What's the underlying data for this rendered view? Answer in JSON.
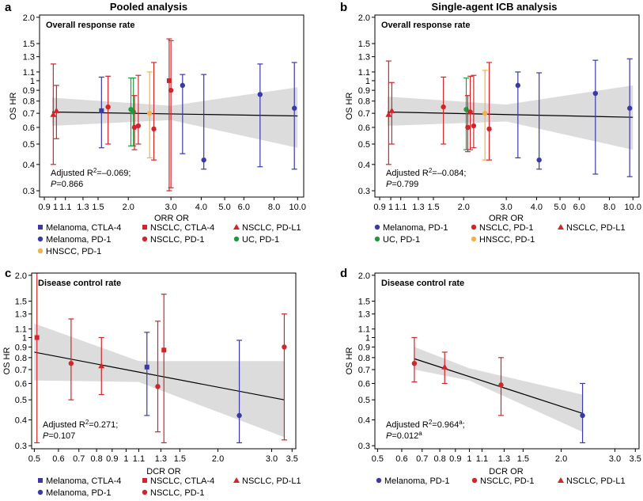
{
  "colors": {
    "melanoma_ctla4": "#3a3aa6",
    "nsclc_ctla4": "#d0262a",
    "nsclc_pdl1": "#d0262a",
    "melanoma_pd1": "#3a3aa6",
    "nsclc_pd1": "#d0262a",
    "uc_pd1": "#1e9a3c",
    "hnscc_pd1": "#f4b14a",
    "band": "#dcdcdc",
    "line": "#000000"
  },
  "chart_data": [
    {
      "id": "a",
      "type": "scatter",
      "letter": "a",
      "title": "Pooled analysis",
      "box_title": "Overall response rate",
      "xlabel": "ORR OR",
      "ylabel": "OS HR",
      "x_scale": "log",
      "y_scale": "log",
      "xlim": [
        0.86,
        10.6
      ],
      "ylim": [
        0.28,
        2.05
      ],
      "xticks": [
        0.9,
        1,
        1.1,
        1.3,
        1.5,
        2.0,
        3.0,
        4.0,
        5.0,
        6.0,
        8.0,
        10.0
      ],
      "xtick_labels": [
        "0.9",
        "1",
        "1.1",
        "1.3",
        "1.5",
        "2.0",
        "3.0",
        "4.0",
        "5.0",
        "6.0",
        "8.0",
        "10.0"
      ],
      "yticks": [
        0.3,
        0.4,
        0.5,
        0.6,
        0.7,
        0.8,
        0.9,
        1,
        1.1,
        1.3,
        1.5,
        2.0
      ],
      "ytick_labels": [
        "0.3",
        "0.4",
        "0.5",
        "0.6",
        "0.7",
        "0.8",
        "0.9",
        "1",
        "1.1",
        "1.3",
        "1.5",
        "2.0"
      ],
      "stat_prefix": "Adjusted R",
      "stat_exp": "2",
      "stat_value": "=–0.069;",
      "p_label": "P",
      "p_value": "=0.866",
      "p_sup": "",
      "regression": {
        "x": [
          0.97,
          10.0
        ],
        "y": [
          0.71,
          0.68
        ]
      },
      "band": {
        "x": [
          0.97,
          3.0,
          10.0
        ],
        "lower": [
          0.61,
          0.65,
          0.48
        ],
        "upper": [
          0.83,
          0.76,
          0.93
        ]
      },
      "points": [
        {
          "group": "nsclc_pdl1",
          "shape": "triangle",
          "x": 0.98,
          "y": 0.69,
          "lo": 0.4,
          "hi": 1.2
        },
        {
          "group": "nsclc_pdl1",
          "shape": "triangle",
          "x": 1.01,
          "y": 0.72,
          "lo": 0.53,
          "hi": 0.95
        },
        {
          "group": "melanoma_ctla4",
          "shape": "square",
          "x": 1.55,
          "y": 0.72,
          "lo": 0.48,
          "hi": 1.04
        },
        {
          "group": "nsclc_pd1",
          "shape": "circle",
          "x": 1.65,
          "y": 0.75,
          "lo": 0.5,
          "hi": 1.05
        },
        {
          "group": "uc_pd1",
          "shape": "circle",
          "x": 2.05,
          "y": 0.73,
          "lo": 0.49,
          "hi": 1.03
        },
        {
          "group": "uc_pd1",
          "shape": "circle",
          "x": 2.1,
          "y": 0.71,
          "lo": 0.49,
          "hi": 1.03
        },
        {
          "group": "nsclc_pd1",
          "shape": "circle",
          "x": 2.12,
          "y": 0.6,
          "lo": 0.47,
          "hi": 0.85
        },
        {
          "group": "nsclc_pd1",
          "shape": "circle",
          "x": 2.2,
          "y": 0.61,
          "lo": 0.5,
          "hi": 1.06
        },
        {
          "group": "hnscc_pd1",
          "shape": "circle",
          "x": 2.45,
          "y": 0.7,
          "lo": 0.43,
          "hi": 1.1
        },
        {
          "group": "nsclc_pd1",
          "shape": "circle",
          "x": 2.55,
          "y": 0.59,
          "lo": 0.42,
          "hi": 1.22
        },
        {
          "group": "nsclc_ctla4",
          "shape": "square",
          "x": 2.95,
          "y": 1.0,
          "lo": 0.3,
          "hi": 1.58
        },
        {
          "group": "nsclc_pd1",
          "shape": "circle",
          "x": 3.0,
          "y": 0.9,
          "lo": 0.31,
          "hi": 1.55
        },
        {
          "group": "melanoma_pd1",
          "shape": "circle",
          "x": 3.35,
          "y": 0.95,
          "lo": 0.45,
          "hi": 1.07
        },
        {
          "group": "melanoma_pd1",
          "shape": "circle",
          "x": 4.1,
          "y": 0.42,
          "lo": 0.38,
          "hi": 1.07
        },
        {
          "group": "melanoma_pd1",
          "shape": "circle",
          "x": 7.0,
          "y": 0.86,
          "lo": 0.39,
          "hi": 1.2
        },
        {
          "group": "melanoma_pd1",
          "shape": "circle",
          "x": 9.7,
          "y": 0.74,
          "lo": 0.38,
          "hi": 1.22
        }
      ],
      "legend": [
        {
          "group": "melanoma_ctla4",
          "shape": "square",
          "label": "Melanoma, CTLA-4"
        },
        {
          "group": "nsclc_ctla4",
          "shape": "square",
          "label": "NSCLC, CTLA-4"
        },
        {
          "group": "nsclc_pdl1",
          "shape": "triangle",
          "label": "NSCLC, PD-L1"
        },
        {
          "group": "melanoma_pd1",
          "shape": "circle",
          "label": "Melanoma, PD-1"
        },
        {
          "group": "nsclc_pd1",
          "shape": "circle",
          "label": "NSCLC, PD-1"
        },
        {
          "group": "uc_pd1",
          "shape": "circle",
          "label": "UC, PD-1"
        },
        {
          "group": "hnscc_pd1",
          "shape": "circle",
          "label": "HNSCC, PD-1"
        }
      ]
    },
    {
      "id": "b",
      "type": "scatter",
      "letter": "b",
      "title": "Single-agent ICB analysis",
      "box_title": "Overall response rate",
      "xlabel": "ORR OR",
      "ylabel": "OS HR",
      "x_scale": "log",
      "y_scale": "log",
      "xlim": [
        0.86,
        10.6
      ],
      "ylim": [
        0.28,
        2.05
      ],
      "xticks": [
        0.9,
        1,
        1.1,
        1.3,
        1.5,
        2.0,
        3.0,
        4.0,
        5.0,
        6.0,
        8.0,
        10.0
      ],
      "xtick_labels": [
        "0.9",
        "1",
        "1.1",
        "1.3",
        "1.5",
        "2.0",
        "3.0",
        "4.0",
        "5.0",
        "6.0",
        "8.0",
        "10.0"
      ],
      "yticks": [
        0.3,
        0.4,
        0.5,
        0.6,
        0.7,
        0.8,
        0.9,
        1,
        1.1,
        1.3,
        1.5,
        2.0
      ],
      "ytick_labels": [
        "0.3",
        "0.4",
        "0.5",
        "0.6",
        "0.7",
        "0.8",
        "0.9",
        "1",
        "1.1",
        "1.3",
        "1.5",
        "2.0"
      ],
      "stat_prefix": "Adjusted R",
      "stat_exp": "2",
      "stat_value": "=–0.084;",
      "p_label": "P",
      "p_value": "=0.799",
      "p_sup": "",
      "regression": {
        "x": [
          0.97,
          10.0
        ],
        "y": [
          0.71,
          0.67
        ]
      },
      "band": {
        "x": [
          0.97,
          3.0,
          10.0
        ],
        "lower": [
          0.61,
          0.64,
          0.47
        ],
        "upper": [
          0.84,
          0.77,
          0.95
        ]
      },
      "points": [
        {
          "group": "nsclc_pdl1",
          "shape": "triangle",
          "x": 0.98,
          "y": 0.69,
          "lo": 0.4,
          "hi": 1.24
        },
        {
          "group": "nsclc_pdl1",
          "shape": "triangle",
          "x": 1.01,
          "y": 0.72,
          "lo": 0.5,
          "hi": 0.98
        },
        {
          "group": "nsclc_pd1",
          "shape": "circle",
          "x": 1.65,
          "y": 0.75,
          "lo": 0.5,
          "hi": 1.04
        },
        {
          "group": "uc_pd1",
          "shape": "circle",
          "x": 2.05,
          "y": 0.73,
          "lo": 0.47,
          "hi": 1.03
        },
        {
          "group": "nsclc_pd1",
          "shape": "circle",
          "x": 2.08,
          "y": 0.6,
          "lo": 0.46,
          "hi": 0.85
        },
        {
          "group": "nsclc_pd1",
          "shape": "circle",
          "x": 2.13,
          "y": 0.71,
          "lo": 0.47,
          "hi": 1.05
        },
        {
          "group": "nsclc_pd1",
          "shape": "circle",
          "x": 2.2,
          "y": 0.61,
          "lo": 0.48,
          "hi": 1.06
        },
        {
          "group": "hnscc_pd1",
          "shape": "circle",
          "x": 2.45,
          "y": 0.7,
          "lo": 0.42,
          "hi": 1.12
        },
        {
          "group": "nsclc_pd1",
          "shape": "circle",
          "x": 2.55,
          "y": 0.59,
          "lo": 0.42,
          "hi": 1.22
        },
        {
          "group": "melanoma_pd1",
          "shape": "circle",
          "x": 3.35,
          "y": 0.95,
          "lo": 0.43,
          "hi": 1.1
        },
        {
          "group": "melanoma_pd1",
          "shape": "circle",
          "x": 4.1,
          "y": 0.42,
          "lo": 0.38,
          "hi": 1.09
        },
        {
          "group": "melanoma_pd1",
          "shape": "circle",
          "x": 7.0,
          "y": 0.87,
          "lo": 0.36,
          "hi": 1.25
        },
        {
          "group": "melanoma_pd1",
          "shape": "circle",
          "x": 9.7,
          "y": 0.74,
          "lo": 0.35,
          "hi": 1.27
        }
      ],
      "legend": [
        {
          "group": "melanoma_pd1",
          "shape": "circle",
          "label": "Melanoma, PD-1"
        },
        {
          "group": "nsclc_pd1",
          "shape": "circle",
          "label": "NSCLC, PD-1"
        },
        {
          "group": "nsclc_pdl1",
          "shape": "triangle",
          "label": "NSCLC, PD-L1"
        },
        {
          "group": "uc_pd1",
          "shape": "circle",
          "label": "UC, PD-1"
        },
        {
          "group": "hnscc_pd1",
          "shape": "circle",
          "label": "HNSCC, PD-1"
        }
      ]
    },
    {
      "id": "c",
      "type": "scatter",
      "letter": "c",
      "title": "",
      "box_title": "Disease control rate",
      "xlabel": "DCR OR",
      "ylabel": "OS HR",
      "x_scale": "log",
      "y_scale": "log",
      "xlim": [
        0.49,
        3.6
      ],
      "ylim": [
        0.29,
        2.05
      ],
      "xticks": [
        0.5,
        0.6,
        0.7,
        0.8,
        0.9,
        1,
        1.1,
        1.3,
        1.5,
        2.0,
        3.0,
        3.5
      ],
      "xtick_labels": [
        "0.5",
        "0.6",
        "0.7",
        "0.8",
        "0.9",
        "1",
        "1.1",
        "1.3",
        "1.5",
        "2.0",
        "3.0",
        "3.5"
      ],
      "yticks": [
        0.3,
        0.4,
        0.5,
        0.6,
        0.7,
        0.8,
        0.9,
        1,
        1.1,
        1.3,
        1.5,
        2.0
      ],
      "ytick_labels": [
        "0.3",
        "0.4",
        "0.5",
        "0.6",
        "0.7",
        "0.8",
        "0.9",
        "1",
        "1.1",
        "1.3",
        "1.5",
        "2.0"
      ],
      "stat_prefix": "Adjusted R",
      "stat_exp": "2",
      "stat_value": "=0.271;",
      "p_label": "P",
      "p_value": "=0.107",
      "p_sup": "",
      "regression": {
        "x": [
          0.5,
          3.3
        ],
        "y": [
          0.85,
          0.5
        ]
      },
      "band": {
        "x": [
          0.5,
          1.1,
          3.3
        ],
        "lower": [
          0.62,
          0.61,
          0.33
        ],
        "upper": [
          1.17,
          0.77,
          0.77
        ]
      },
      "points": [
        {
          "group": "nsclc_ctla4",
          "shape": "square",
          "x": 0.51,
          "y": 1.0,
          "lo": 0.31,
          "hi": 2.05
        },
        {
          "group": "nsclc_pd1",
          "shape": "circle",
          "x": 0.66,
          "y": 0.75,
          "lo": 0.5,
          "hi": 1.23
        },
        {
          "group": "nsclc_pdl1",
          "shape": "triangle",
          "x": 0.83,
          "y": 0.73,
          "lo": 0.53,
          "hi": 1.0
        },
        {
          "group": "melanoma_ctla4",
          "shape": "square",
          "x": 1.17,
          "y": 0.72,
          "lo": 0.42,
          "hi": 1.06
        },
        {
          "group": "nsclc_pd1",
          "shape": "circle",
          "x": 1.27,
          "y": 0.58,
          "lo": 0.35,
          "hi": 1.2
        },
        {
          "group": "nsclc_ctla4",
          "shape": "square",
          "x": 1.33,
          "y": 0.87,
          "lo": 0.31,
          "hi": 1.62
        },
        {
          "group": "melanoma_pd1",
          "shape": "circle",
          "x": 2.35,
          "y": 0.42,
          "lo": 0.31,
          "hi": 0.97
        },
        {
          "group": "nsclc_pd1",
          "shape": "circle",
          "x": 3.3,
          "y": 0.9,
          "lo": 0.32,
          "hi": 1.3
        }
      ],
      "legend": [
        {
          "group": "melanoma_ctla4",
          "shape": "square",
          "label": "Melanoma, CTLA-4"
        },
        {
          "group": "nsclc_ctla4",
          "shape": "square",
          "label": "NSCLC, CTLA-4"
        },
        {
          "group": "nsclc_pdl1",
          "shape": "triangle",
          "label": "NSCLC, PD-L1"
        },
        {
          "group": "melanoma_pd1",
          "shape": "circle",
          "label": "Melanoma, PD-1"
        },
        {
          "group": "nsclc_pd1",
          "shape": "circle",
          "label": "NSCLC, PD-1"
        }
      ]
    },
    {
      "id": "d",
      "type": "scatter",
      "letter": "d",
      "title": "",
      "box_title": "Disease control rate",
      "xlabel": "DCR OR",
      "ylabel": "OS HR",
      "x_scale": "log",
      "y_scale": "log",
      "xlim": [
        0.49,
        3.6
      ],
      "ylim": [
        0.29,
        2.05
      ],
      "xticks": [
        0.5,
        0.6,
        0.7,
        0.8,
        0.9,
        1,
        1.1,
        1.3,
        1.5,
        2.0,
        3.0,
        3.5
      ],
      "xtick_labels": [
        "0.5",
        "0.6",
        "0.7",
        "0.8",
        "0.9",
        "1",
        "1.1",
        "1.3",
        "1.5",
        "2.0",
        "3.0",
        "3.5"
      ],
      "yticks": [
        0.3,
        0.4,
        0.5,
        0.6,
        0.7,
        0.8,
        0.9,
        1,
        1.1,
        1.3,
        1.5,
        2.0
      ],
      "ytick_labels": [
        "0.3",
        "0.4",
        "0.5",
        "0.6",
        "0.7",
        "0.8",
        "0.9",
        "1",
        "1.1",
        "1.3",
        "1.5",
        "2.0"
      ],
      "stat_prefix": "Adjusted R",
      "stat_exp": "2",
      "stat_value": "=0.964",
      "stat_value_sup": "a",
      "stat_value_tail": ";",
      "p_label": "P",
      "p_value": "=0.012",
      "p_sup": "a",
      "regression": {
        "x": [
          0.66,
          2.35
        ],
        "y": [
          0.79,
          0.43
        ]
      },
      "band": {
        "x": [
          0.66,
          1.0,
          2.35
        ],
        "lower": [
          0.7,
          0.62,
          0.35
        ],
        "upper": [
          0.9,
          0.71,
          0.53
        ]
      },
      "points": [
        {
          "group": "nsclc_pd1",
          "shape": "circle",
          "x": 0.66,
          "y": 0.75,
          "lo": 0.61,
          "hi": 1.0
        },
        {
          "group": "nsclc_pdl1",
          "shape": "triangle",
          "x": 0.83,
          "y": 0.72,
          "lo": 0.6,
          "hi": 0.85
        },
        {
          "group": "nsclc_pd1",
          "shape": "circle",
          "x": 1.27,
          "y": 0.59,
          "lo": 0.42,
          "hi": 0.8
        },
        {
          "group": "melanoma_pd1",
          "shape": "circle",
          "x": 2.35,
          "y": 0.42,
          "lo": 0.31,
          "hi": 0.6
        }
      ],
      "legend": [
        {
          "group": "melanoma_pd1",
          "shape": "circle",
          "label": "Melanoma, PD-1"
        },
        {
          "group": "nsclc_pd1",
          "shape": "circle",
          "label": "NSCLC, PD-1"
        },
        {
          "group": "nsclc_pdl1",
          "shape": "triangle",
          "label": "NSCLC, PD-L1"
        }
      ]
    }
  ]
}
